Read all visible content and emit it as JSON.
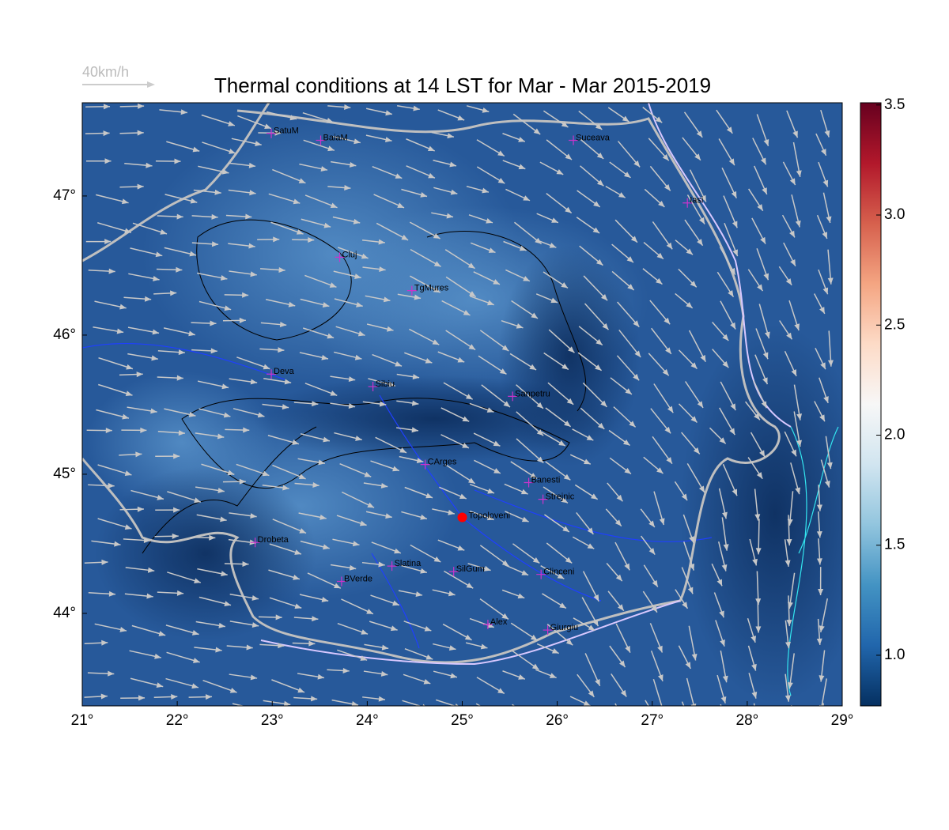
{
  "title": "Thermal conditions at 14 LST for Mar - Mar  2015-2019",
  "wind_scale_label": "40km/h",
  "map": {
    "xlim": [
      21,
      29
    ],
    "ylim": [
      43.335,
      47.67
    ],
    "xticks": [
      {
        "value": 21,
        "label": "21°"
      },
      {
        "value": 22,
        "label": "22°"
      },
      {
        "value": 23,
        "label": "23°"
      },
      {
        "value": 24,
        "label": "24°"
      },
      {
        "value": 25,
        "label": "25°"
      },
      {
        "value": 26,
        "label": "26°"
      },
      {
        "value": 27,
        "label": "27°"
      },
      {
        "value": 28,
        "label": "28°"
      },
      {
        "value": 29,
        "label": "29°"
      }
    ],
    "yticks": [
      {
        "value": 44,
        "label": "44°"
      },
      {
        "value": 45,
        "label": "45°"
      },
      {
        "value": 46,
        "label": "46°"
      },
      {
        "value": 47,
        "label": "47°"
      }
    ],
    "cities": [
      {
        "name": "SatuM",
        "lon": 22.99,
        "lat": 47.45
      },
      {
        "name": "BaiaM",
        "lon": 23.51,
        "lat": 47.4
      },
      {
        "name": "Suceava",
        "lon": 26.17,
        "lat": 47.4
      },
      {
        "name": "Iasi",
        "lon": 27.37,
        "lat": 46.95
      },
      {
        "name": "Cluj",
        "lon": 23.71,
        "lat": 46.56
      },
      {
        "name": "TgMures",
        "lon": 24.47,
        "lat": 46.32
      },
      {
        "name": "Deva",
        "lon": 22.99,
        "lat": 45.72
      },
      {
        "name": "Sibiu",
        "lon": 24.06,
        "lat": 45.63
      },
      {
        "name": "Sanpetru",
        "lon": 25.53,
        "lat": 45.56
      },
      {
        "name": "CArges",
        "lon": 24.61,
        "lat": 45.07
      },
      {
        "name": "Banesti",
        "lon": 25.7,
        "lat": 44.94
      },
      {
        "name": "Strejnic",
        "lon": 25.85,
        "lat": 44.82
      },
      {
        "name": "Drobeta",
        "lon": 22.82,
        "lat": 44.51
      },
      {
        "name": "Slatina",
        "lon": 24.26,
        "lat": 44.34
      },
      {
        "name": "SilGum",
        "lon": 24.91,
        "lat": 44.3
      },
      {
        "name": "Clinceni",
        "lon": 25.83,
        "lat": 44.28
      },
      {
        "name": "BVerde",
        "lon": 23.73,
        "lat": 44.23
      },
      {
        "name": "Alex",
        "lon": 25.27,
        "lat": 43.92
      },
      {
        "name": "Giurgiu",
        "lon": 25.9,
        "lat": 43.88
      }
    ],
    "highlight": {
      "name": "Topoloveni",
      "lon": 25.0,
      "lat": 44.69,
      "color": "#ff0000"
    },
    "city_marker_color": "#cc33cc"
  },
  "colorbar": {
    "lim": [
      0.77,
      3.51
    ],
    "ticks": [
      {
        "value": 1,
        "label": "1.0"
      },
      1.5,
      {
        "value": 2,
        "label": "2.0"
      },
      2.5,
      {
        "value": 3,
        "label": "3.0"
      },
      3.5
    ],
    "colors": [
      "#053061",
      "#2166ac",
      "#4393c3",
      "#92c5de",
      "#d1e5f0",
      "#f7f7f7",
      "#fddbc7",
      "#f4a582",
      "#d6604d",
      "#b2182b",
      "#67001f"
    ]
  }
}
